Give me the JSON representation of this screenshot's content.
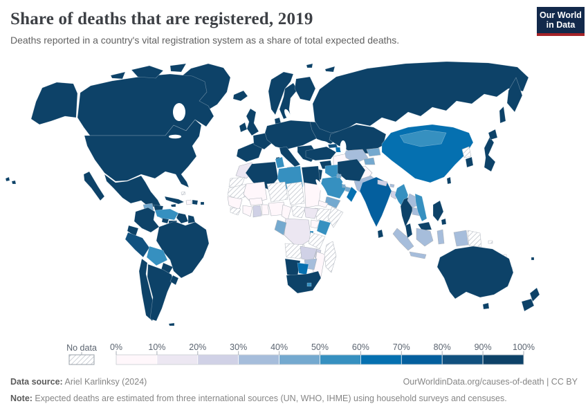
{
  "header": {
    "title": "Share of deaths that are registered, 2019",
    "subtitle": "Deaths reported in a country's vital registration system as a share of total expected deaths."
  },
  "logo": {
    "line1": "Our World",
    "line2": "in Data",
    "bg_color": "#12294b",
    "accent_color": "#a52328"
  },
  "legend": {
    "no_data_label": "No data",
    "ticks": [
      "0%",
      "10%",
      "20%",
      "30%",
      "40%",
      "50%",
      "60%",
      "70%",
      "80%",
      "90%",
      "100%"
    ]
  },
  "footer": {
    "source_label": "Data source:",
    "source_text": " Ariel Karlinksy (2024)",
    "link_text": "OurWorldinData.org/causes-of-death | CC BY",
    "note_label": "Note:",
    "note_text": " Expected deaths are estimated from three international sources (UN, WHO, IHME) using household surveys and censuses."
  },
  "chart_data": {
    "type": "choropleth_map",
    "title": "Share of deaths that are registered, 2019",
    "unit": "% of expected deaths registered",
    "legend_position": "bottom",
    "no_data": {
      "label": "No data",
      "pattern": "diagonal-hatch"
    },
    "bins": [
      {
        "range": "0-10%",
        "color": "#fff7fb"
      },
      {
        "range": "10-20%",
        "color": "#ece7f2"
      },
      {
        "range": "20-30%",
        "color": "#d0d1e6"
      },
      {
        "range": "30-40%",
        "color": "#a6bddb"
      },
      {
        "range": "40-50%",
        "color": "#74a9cf"
      },
      {
        "range": "50-60%",
        "color": "#3690c0"
      },
      {
        "range": "60-70%",
        "color": "#0570b0"
      },
      {
        "range": "70-80%",
        "color": "#045f9e"
      },
      {
        "range": "80-90%",
        "color": "#11517f"
      },
      {
        "range": "90-100%",
        "color": "#0d4268"
      }
    ],
    "countries": {
      "Greenland": "90-100%",
      "Canada": "90-100%",
      "United States": "90-100%",
      "Mexico": "90-100%",
      "Guatemala": "40-50%",
      "Honduras": "90-100%",
      "Nicaragua": "60-70%",
      "Costa Rica": "90-100%",
      "Panama": "90-100%",
      "Cuba": "90-100%",
      "Haiti": "0-10%",
      "Dominican Republic": "90-100%",
      "Jamaica": "90-100%",
      "Puerto Rico": "90-100%",
      "Bahamas": "No data",
      "Colombia": "90-100%",
      "Venezuela": "50-60%",
      "Guyana": "90-100%",
      "Suriname": "90-100%",
      "Ecuador": "90-100%",
      "Peru": "80-90%",
      "Brazil": "90-100%",
      "Bolivia": "50-60%",
      "Paraguay": "90-100%",
      "Chile": "90-100%",
      "Argentina": "90-100%",
      "Uruguay": "90-100%",
      "Falkland Islands": "90-100%",
      "Iceland": "90-100%",
      "Ireland": "90-100%",
      "United Kingdom": "90-100%",
      "Norway": "90-100%",
      "Sweden": "90-100%",
      "Finland": "90-100%",
      "Denmark": "90-100%",
      "Spain": "90-100%",
      "France": "90-100%",
      "Central Europe": "90-100%",
      "Italy": "90-100%",
      "Balkans and Greece": "90-100%",
      "Ukraine": "90-100%",
      "Russia": "90-100%",
      "Kazakhstan": "90-100%",
      "Turkmenistan": "0-10%",
      "Uzbekistan": "30-40%",
      "Kyrgyzstan": "40-50%",
      "Tajikistan": "40-50%",
      "Afghanistan": "0-10%",
      "Pakistan": "30-40%",
      "Turkey": "90-100%",
      "Georgia": "80-90%",
      "Azerbaijan": "60-70%",
      "Syria": "90-100%",
      "Israel and Jordan": "90-100%",
      "Iraq": "50-60%",
      "Iran": "90-100%",
      "Saudi Arabia": "50-60%",
      "Kuwait": "40-50%",
      "Qatar": "40-50%",
      "United Arab Emirates": "40-50%",
      "Oman": "60-70%",
      "Yemen": "40-50%",
      "Morocco": "10-20%",
      "Western Sahara": "No data",
      "Algeria": "90-100%",
      "Tunisia": "50-60%",
      "Libya": "50-60%",
      "Egypt": "90-100%",
      "Mauritania": "No data",
      "Mali": "0-10%",
      "Niger": "No data",
      "Chad": "No data",
      "Sudan": "0-10%",
      "Eritrea": "0-10%",
      "Ethiopia": "No data",
      "Somalia": "No data",
      "Senegal": "0-10%",
      "Guinea": "No data",
      "Ivory Coast": "0-10%",
      "Ghana": "20-30%",
      "Togo and Benin": "0-10%",
      "Burkina Faso": "0-10%",
      "Nigeria": "0-10%",
      "Cameroon": "0-10%",
      "Central African Republic": "No data",
      "South Sudan": "10-20%",
      "Uganda": "0-10%",
      "Kenya": "50-60%",
      "Democratic Republic of Congo": "10-20%",
      "Gabon": "40-50%",
      "Rwanda and Burundi": "50-60%",
      "Tanzania": "No data",
      "Angola": "No data",
      "Zambia": "20-30%",
      "Malawi": "20-30%",
      "Mozambique": "0-10%",
      "Zimbabwe": "30-40%",
      "Namibia": "90-100%",
      "Botswana": "60-70%",
      "South Africa": "90-100%",
      "Lesotho": "50-60%",
      "Madagascar": "No data",
      "China": "60-70%",
      "Mongolia": "50-60%",
      "North Korea": "No data",
      "South Korea": "90-100%",
      "Japan": "90-100%",
      "Taiwan": "90-100%",
      "India": "70-80%",
      "Nepal": "20-30%",
      "Bhutan": "30-40%",
      "Bangladesh": "20-30%",
      "Sri Lanka": "90-100%",
      "Myanmar": "50-60%",
      "Thailand": "90-100%",
      "Laos": "30-40%",
      "Cambodia": "30-40%",
      "Vietnam": "50-60%",
      "Malaysia": "90-100%",
      "Indonesia": "30-40%",
      "Papua New Guinea": "No data",
      "Philippines": "90-100%",
      "Solomon Islands": "No data",
      "Vanuatu": "No data",
      "Fiji": "90-100%",
      "New Caledonia": "No data",
      "Australia": "90-100%",
      "New Zealand": "90-100%"
    }
  }
}
